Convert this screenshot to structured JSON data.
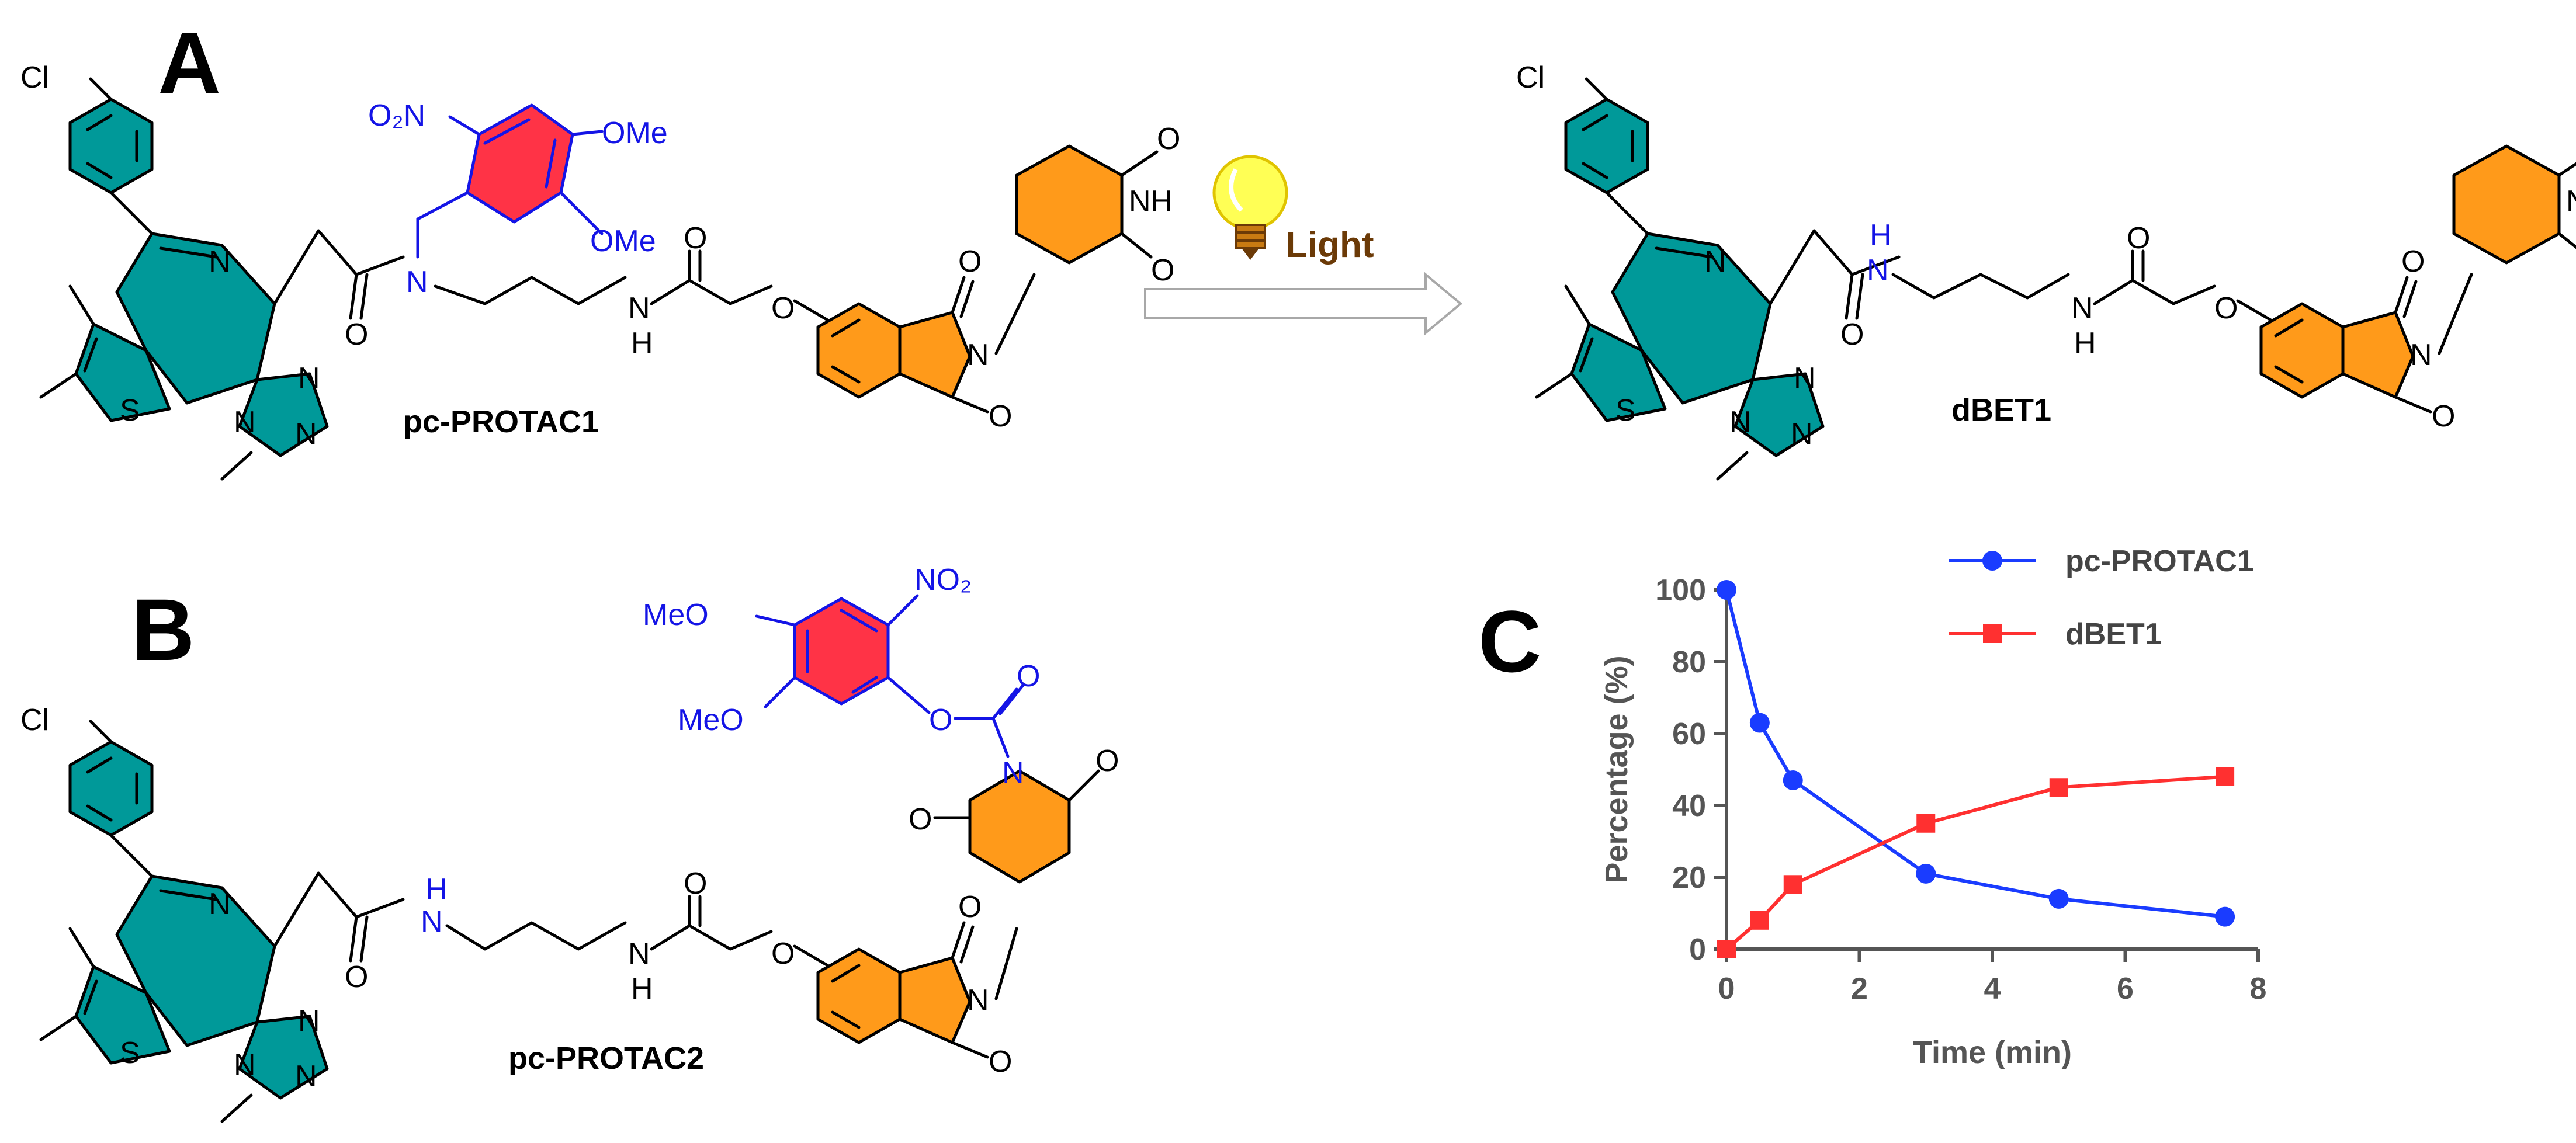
{
  "panels": {
    "a": "A",
    "b": "B",
    "c": "C"
  },
  "compounds": {
    "a_left": "pc-PROTAC1",
    "a_right": "dBET1",
    "b": "pc-PROTAC2"
  },
  "reaction": {
    "condition": "Light"
  },
  "atoms": {
    "cl": "Cl",
    "n": "N",
    "s": "S",
    "o": "O",
    "nh": "NH",
    "h": "H",
    "no2": "NO₂",
    "o2n": "O₂N",
    "ome": "OMe",
    "meo": "MeO"
  },
  "colors": {
    "teal": "#009999",
    "orange": "#ff9a1a",
    "red": "#ff3346",
    "blue": "#1414e6",
    "series_blue": "#1a3cff",
    "series_red": "#ff3030"
  },
  "chart_data": {
    "type": "line",
    "xlabel": "Time (min)",
    "ylabel": "Percentage (%)",
    "xlim": [
      0,
      8
    ],
    "ylim": [
      0,
      100
    ],
    "xticks": [
      0,
      2,
      4,
      6,
      8
    ],
    "yticks": [
      0,
      20,
      40,
      60,
      80,
      100
    ],
    "legend_position": "top",
    "grid": false,
    "series": [
      {
        "name": "pc-PROTAC1",
        "marker": "circle",
        "color": "#1a3cff",
        "points": [
          [
            0,
            100
          ],
          [
            0.5,
            63
          ],
          [
            1,
            47
          ],
          [
            3,
            21
          ],
          [
            5,
            14
          ],
          [
            7.5,
            9
          ]
        ]
      },
      {
        "name": "dBET1",
        "marker": "square",
        "color": "#ff3030",
        "points": [
          [
            0,
            0
          ],
          [
            0.5,
            8
          ],
          [
            1,
            18
          ],
          [
            3,
            35
          ],
          [
            5,
            45
          ],
          [
            7.5,
            48
          ]
        ]
      }
    ]
  }
}
